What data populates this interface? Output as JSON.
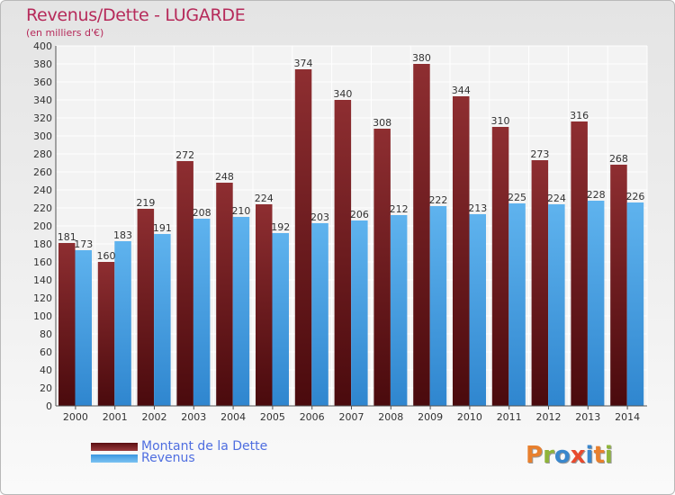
{
  "header": {
    "title": "Revenus/Dette - LUGARDE",
    "subtitle": "(en milliers d'€)"
  },
  "legend": [
    {
      "label": "Montant de la Dette",
      "color": "#7b1c20"
    },
    {
      "label": "Revenus",
      "color": "#4da3e6"
    }
  ],
  "logo": {
    "text": "Proxiti",
    "colors": [
      "#e8802e",
      "#8fb43a",
      "#3a87cc",
      "#e84a2e",
      "#3a87cc",
      "#e8802e",
      "#8fb43a"
    ]
  },
  "chart_data": {
    "type": "bar",
    "categories": [
      "2000",
      "2001",
      "2002",
      "2003",
      "2004",
      "2005",
      "2006",
      "2007",
      "2008",
      "2009",
      "2010",
      "2011",
      "2012",
      "2013",
      "2014"
    ],
    "series": [
      {
        "name": "Montant de la Dette",
        "values": [
          181,
          160,
          219,
          272,
          248,
          224,
          374,
          340,
          308,
          380,
          344,
          310,
          273,
          316,
          268
        ],
        "color": "#7b1c20"
      },
      {
        "name": "Revenus",
        "values": [
          173,
          183,
          191,
          208,
          210,
          192,
          203,
          206,
          212,
          222,
          213,
          225,
          224,
          228,
          226
        ],
        "color": "#4da3e6"
      }
    ],
    "ylim": [
      0,
      400
    ],
    "yticks": [
      0,
      20,
      40,
      60,
      80,
      100,
      120,
      140,
      160,
      180,
      200,
      220,
      240,
      260,
      280,
      300,
      320,
      340,
      360,
      380,
      400
    ],
    "grid": true,
    "legend_position": "bottom-left"
  }
}
